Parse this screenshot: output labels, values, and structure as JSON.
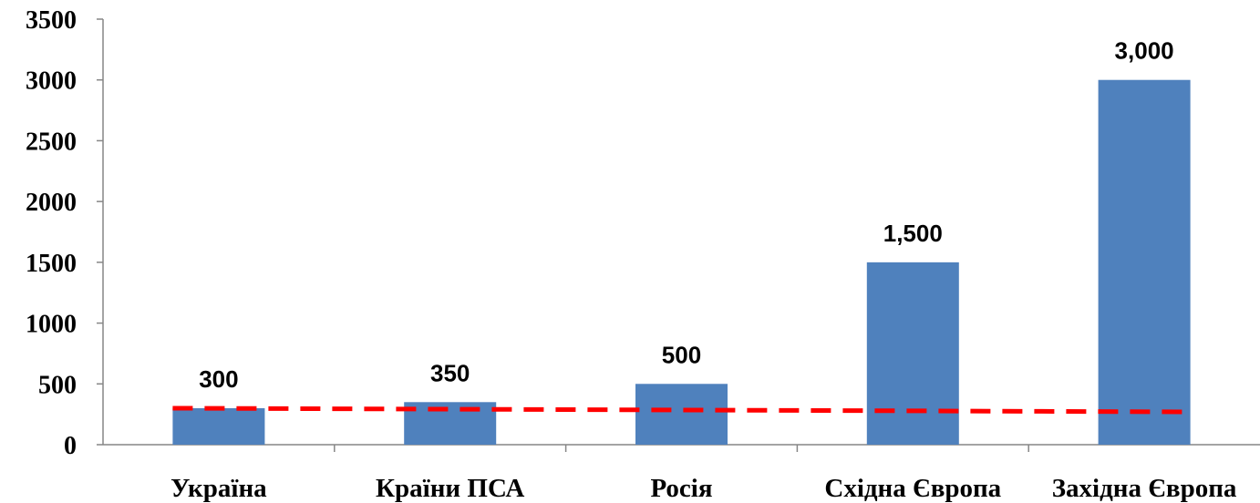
{
  "chart_data": {
    "type": "bar",
    "title": "",
    "xlabel": "",
    "ylabel": "",
    "categories": [
      "Україна",
      "Країни ПСА",
      "Росія",
      "Східна Європа",
      "Західна Європа"
    ],
    "values": [
      300,
      350,
      500,
      1500,
      3000
    ],
    "value_labels": [
      "300",
      "350",
      "500",
      "1,500",
      "3,000"
    ],
    "ylim": [
      0,
      3500
    ],
    "yticks": [
      0,
      500,
      1000,
      1500,
      2000,
      2500,
      3000,
      3500
    ],
    "ytick_labels": [
      "0",
      "500",
      "1000",
      "1500",
      "2000",
      "2500",
      "3000",
      "3500"
    ],
    "grid": false,
    "legend": "none",
    "trendline": {
      "style": "dashed",
      "start_value": 300,
      "end_value": 270
    },
    "colors": {
      "bar": "#4F81BD",
      "trendline": "#FF0000",
      "axis": "#868686"
    }
  }
}
